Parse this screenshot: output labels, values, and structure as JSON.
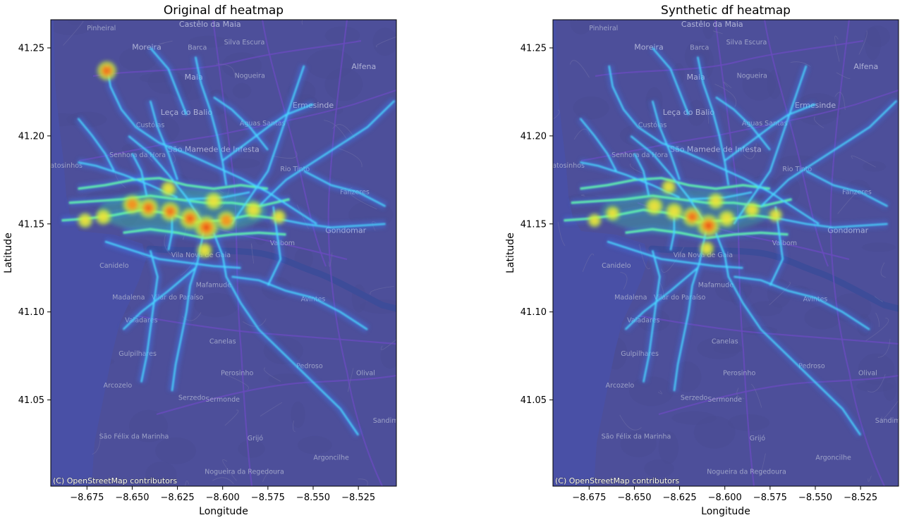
{
  "chart_data": [
    {
      "type": "heatmap",
      "title": "Original df heatmap",
      "xlabel": "Longitude",
      "ylabel": "Latitude",
      "xlim": [
        -8.695,
        -8.504
      ],
      "ylim": [
        41.001,
        41.266
      ],
      "xticks": [
        -8.675,
        -8.65,
        -8.625,
        -8.6,
        -8.575,
        -8.55,
        -8.525
      ],
      "xtick_labels": [
        "−8.675",
        "−8.650",
        "−8.625",
        "−8.600",
        "−8.575",
        "−8.550",
        "−8.525"
      ],
      "yticks": [
        41.05,
        41.1,
        41.15,
        41.2,
        41.25
      ],
      "ytick_labels": [
        "41.05",
        "41.10",
        "41.15",
        "41.20",
        "41.25"
      ],
      "colormap": "jet",
      "basemap": "OpenStreetMap",
      "attribution": "(C) OpenStreetMap contributors",
      "hotspots": [
        {
          "lon": -8.609,
          "lat": 41.148,
          "intensity": 1.0
        },
        {
          "lon": -8.618,
          "lat": 41.153,
          "intensity": 0.85
        },
        {
          "lon": -8.641,
          "lat": 41.159,
          "intensity": 0.8
        },
        {
          "lon": -8.65,
          "lat": 41.161,
          "intensity": 0.7
        },
        {
          "lon": -8.629,
          "lat": 41.157,
          "intensity": 0.75
        },
        {
          "lon": -8.598,
          "lat": 41.152,
          "intensity": 0.7
        },
        {
          "lon": -8.605,
          "lat": 41.163,
          "intensity": 0.6
        },
        {
          "lon": -8.583,
          "lat": 41.158,
          "intensity": 0.55
        },
        {
          "lon": -8.666,
          "lat": 41.154,
          "intensity": 0.5
        },
        {
          "lon": -8.676,
          "lat": 41.152,
          "intensity": 0.45
        },
        {
          "lon": -8.61,
          "lat": 41.135,
          "intensity": 0.45
        },
        {
          "lon": -8.63,
          "lat": 41.17,
          "intensity": 0.45
        },
        {
          "lon": -8.569,
          "lat": 41.154,
          "intensity": 0.4
        },
        {
          "lon": -8.664,
          "lat": 41.237,
          "intensity": 0.75
        }
      ]
    },
    {
      "type": "heatmap",
      "title": "Synthetic df heatmap",
      "xlabel": "Longitude",
      "ylabel": "Latitude",
      "xlim": [
        -8.695,
        -8.504
      ],
      "ylim": [
        41.001,
        41.266
      ],
      "xticks": [
        -8.675,
        -8.65,
        -8.625,
        -8.6,
        -8.575,
        -8.55,
        -8.525
      ],
      "xtick_labels": [
        "−8.675",
        "−8.650",
        "−8.625",
        "−8.600",
        "−8.575",
        "−8.550",
        "−8.525"
      ],
      "yticks": [
        41.05,
        41.1,
        41.15,
        41.2,
        41.25
      ],
      "ytick_labels": [
        "41.05",
        "41.10",
        "41.15",
        "41.20",
        "41.25"
      ],
      "colormap": "jet",
      "basemap": "OpenStreetMap",
      "attribution": "(C) OpenStreetMap contributors",
      "hotspots": [
        {
          "lon": -8.609,
          "lat": 41.149,
          "intensity": 0.95
        },
        {
          "lon": -8.618,
          "lat": 41.154,
          "intensity": 0.75
        },
        {
          "lon": -8.639,
          "lat": 41.16,
          "intensity": 0.6
        },
        {
          "lon": -8.628,
          "lat": 41.157,
          "intensity": 0.6
        },
        {
          "lon": -8.599,
          "lat": 41.153,
          "intensity": 0.55
        },
        {
          "lon": -8.605,
          "lat": 41.163,
          "intensity": 0.5
        },
        {
          "lon": -8.585,
          "lat": 41.158,
          "intensity": 0.45
        },
        {
          "lon": -8.662,
          "lat": 41.156,
          "intensity": 0.4
        },
        {
          "lon": -8.61,
          "lat": 41.136,
          "intensity": 0.4
        },
        {
          "lon": -8.631,
          "lat": 41.171,
          "intensity": 0.4
        },
        {
          "lon": -8.572,
          "lat": 41.155,
          "intensity": 0.35
        },
        {
          "lon": -8.672,
          "lat": 41.152,
          "intensity": 0.35
        }
      ]
    }
  ],
  "map_labels": [
    {
      "name": "Castêlo da Maia",
      "lon": -8.607,
      "lat": 41.262,
      "big": true
    },
    {
      "name": "Pinheiral",
      "lon": -8.667,
      "lat": 41.26,
      "big": false
    },
    {
      "name": "Moreira",
      "lon": -8.642,
      "lat": 41.249,
      "big": true
    },
    {
      "name": "Barca",
      "lon": -8.614,
      "lat": 41.249,
      "big": false
    },
    {
      "name": "Silva Escura",
      "lon": -8.588,
      "lat": 41.252,
      "big": false
    },
    {
      "name": "Alfena",
      "lon": -8.522,
      "lat": 41.238,
      "big": true
    },
    {
      "name": "Maia",
      "lon": -8.616,
      "lat": 41.232,
      "big": true
    },
    {
      "name": "Nogueira",
      "lon": -8.585,
      "lat": 41.233,
      "big": false
    },
    {
      "name": "Leça do Balio",
      "lon": -8.62,
      "lat": 41.212,
      "big": true
    },
    {
      "name": "Ermesinde",
      "lon": -8.55,
      "lat": 41.216,
      "big": true
    },
    {
      "name": "Custóias",
      "lon": -8.64,
      "lat": 41.205,
      "big": false
    },
    {
      "name": "Águas Santas",
      "lon": -8.578,
      "lat": 41.206,
      "big": false
    },
    {
      "name": "São Mamede de Infesta",
      "lon": -8.605,
      "lat": 41.191,
      "big": true
    },
    {
      "name": "Senhora da Hora",
      "lon": -8.647,
      "lat": 41.188,
      "big": false
    },
    {
      "name": "Matosinhos",
      "lon": -8.688,
      "lat": 41.182,
      "big": false
    },
    {
      "name": "Rio Tinto",
      "lon": -8.56,
      "lat": 41.18,
      "big": false
    },
    {
      "name": "Fânzeres",
      "lon": -8.527,
      "lat": 41.167,
      "big": false
    },
    {
      "name": "Gondomar",
      "lon": -8.532,
      "lat": 41.145,
      "big": true
    },
    {
      "name": "Valbom",
      "lon": -8.567,
      "lat": 41.138,
      "big": false
    },
    {
      "name": "Vila Nova de Gaia",
      "lon": -8.612,
      "lat": 41.131,
      "big": false
    },
    {
      "name": "Canidelo",
      "lon": -8.66,
      "lat": 41.125,
      "big": false
    },
    {
      "name": "Mafamude",
      "lon": -8.605,
      "lat": 41.114,
      "big": false
    },
    {
      "name": "Madalena",
      "lon": -8.652,
      "lat": 41.107,
      "big": false
    },
    {
      "name": "Vilar do Paraíso",
      "lon": -8.625,
      "lat": 41.107,
      "big": false
    },
    {
      "name": "Avintes",
      "lon": -8.55,
      "lat": 41.106,
      "big": false
    },
    {
      "name": "Valadares",
      "lon": -8.645,
      "lat": 41.094,
      "big": false
    },
    {
      "name": "Canelas",
      "lon": -8.6,
      "lat": 41.082,
      "big": false
    },
    {
      "name": "Gulpilhares",
      "lon": -8.647,
      "lat": 41.075,
      "big": false
    },
    {
      "name": "Perosinho",
      "lon": -8.592,
      "lat": 41.064,
      "big": false
    },
    {
      "name": "Pedroso",
      "lon": -8.552,
      "lat": 41.068,
      "big": false
    },
    {
      "name": "Olival",
      "lon": -8.521,
      "lat": 41.064,
      "big": false
    },
    {
      "name": "Arcozelo",
      "lon": -8.658,
      "lat": 41.057,
      "big": false
    },
    {
      "name": "Serzedo",
      "lon": -8.617,
      "lat": 41.05,
      "big": false
    },
    {
      "name": "Sermonde",
      "lon": -8.6,
      "lat": 41.049,
      "big": false
    },
    {
      "name": "São Félix da Marinha",
      "lon": -8.649,
      "lat": 41.028,
      "big": false
    },
    {
      "name": "Grijó",
      "lon": -8.582,
      "lat": 41.027,
      "big": false
    },
    {
      "name": "Argoncilhe",
      "lon": -8.54,
      "lat": 41.016,
      "big": false
    },
    {
      "name": "Nogueira da Regedoura",
      "lon": -8.588,
      "lat": 41.008,
      "big": false
    },
    {
      "name": "Sandim",
      "lon": -8.51,
      "lat": 41.037,
      "big": false
    }
  ],
  "colors": {
    "map_bg": "#4d4f9a",
    "sea": "#4950a6",
    "land_dark": "#4a4c94",
    "roads": "#6a4bbf",
    "river": "#3d4c99"
  }
}
